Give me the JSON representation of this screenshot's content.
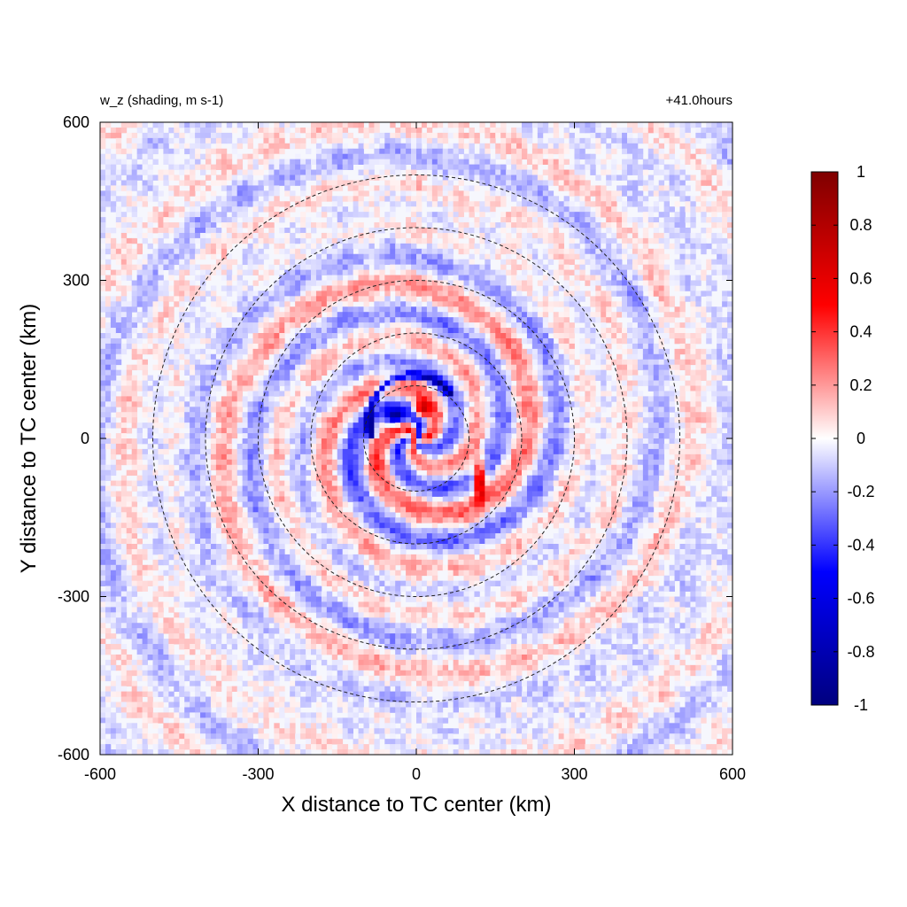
{
  "chart_data": {
    "type": "heatmap",
    "title_left": "w_z (shading, m s-1)",
    "title_right": "+41.0hours",
    "xlabel": "X distance to TC center (km)",
    "ylabel": "Y distance to TC center (km)",
    "xlim": [
      -600,
      600
    ],
    "ylim": [
      -600,
      600
    ],
    "x_ticks": [
      -600,
      -300,
      0,
      300,
      600
    ],
    "y_ticks": [
      -600,
      -300,
      0,
      300,
      600
    ],
    "colorbar": {
      "min": -1,
      "max": 1,
      "ticks": [
        1,
        0.8,
        0.6,
        0.4,
        0.2,
        0,
        -0.2,
        -0.4,
        -0.6,
        -0.8,
        -1
      ],
      "colormap": "blue-white-red",
      "colors": {
        "min": "#00007f",
        "neg": "#0000ff",
        "zero": "#ffffff",
        "pos": "#ff0000",
        "max": "#7f0000"
      }
    },
    "range_rings_km": [
      100,
      200,
      300,
      400,
      500
    ],
    "ring_style": "dashed"
  }
}
